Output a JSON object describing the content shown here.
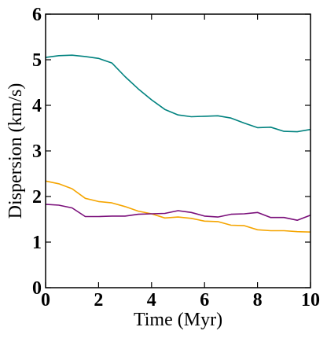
{
  "chart_data": {
    "type": "line",
    "xlabel": "Time (Myr)",
    "ylabel": "Dispersion (km/s)",
    "xlim": [
      0,
      10
    ],
    "ylim": [
      0,
      6
    ],
    "xticks": [
      0,
      2,
      4,
      6,
      8,
      10
    ],
    "yticks": [
      0,
      1,
      2,
      3,
      4,
      5,
      6
    ],
    "grid": false,
    "legend": "none",
    "series": [
      {
        "color": "#00827f",
        "x": [
          0,
          0.5,
          1,
          1.5,
          2,
          2.5,
          3,
          3.5,
          4,
          4.5,
          5,
          5.5,
          6,
          6.5,
          7,
          7.5,
          8,
          8.5,
          9,
          9.5,
          10
        ],
        "y": [
          5.05,
          5.09,
          5.1,
          5.07,
          5.03,
          4.93,
          4.63,
          4.36,
          4.12,
          3.91,
          3.79,
          3.75,
          3.76,
          3.77,
          3.72,
          3.61,
          3.51,
          3.52,
          3.43,
          3.42,
          3.47
        ]
      },
      {
        "color": "#f5a500",
        "x": [
          0,
          0.5,
          1,
          1.5,
          2,
          2.5,
          3,
          3.5,
          4,
          4.5,
          5,
          5.5,
          6,
          6.5,
          7,
          7.5,
          8,
          8.5,
          9,
          9.5,
          10
        ],
        "y": [
          2.34,
          2.28,
          2.17,
          1.96,
          1.89,
          1.86,
          1.78,
          1.68,
          1.62,
          1.53,
          1.55,
          1.52,
          1.46,
          1.45,
          1.37,
          1.36,
          1.27,
          1.25,
          1.25,
          1.23,
          1.22
        ]
      },
      {
        "color": "#7a0f7a",
        "x": [
          0,
          0.5,
          1,
          1.5,
          2,
          2.5,
          3,
          3.5,
          4,
          4.5,
          5,
          5.5,
          6,
          6.5,
          7,
          7.5,
          8,
          8.5,
          9,
          9.5,
          10
        ],
        "y": [
          1.83,
          1.81,
          1.75,
          1.56,
          1.56,
          1.57,
          1.57,
          1.61,
          1.62,
          1.63,
          1.69,
          1.65,
          1.57,
          1.55,
          1.61,
          1.62,
          1.65,
          1.54,
          1.54,
          1.48,
          1.59
        ]
      }
    ]
  }
}
